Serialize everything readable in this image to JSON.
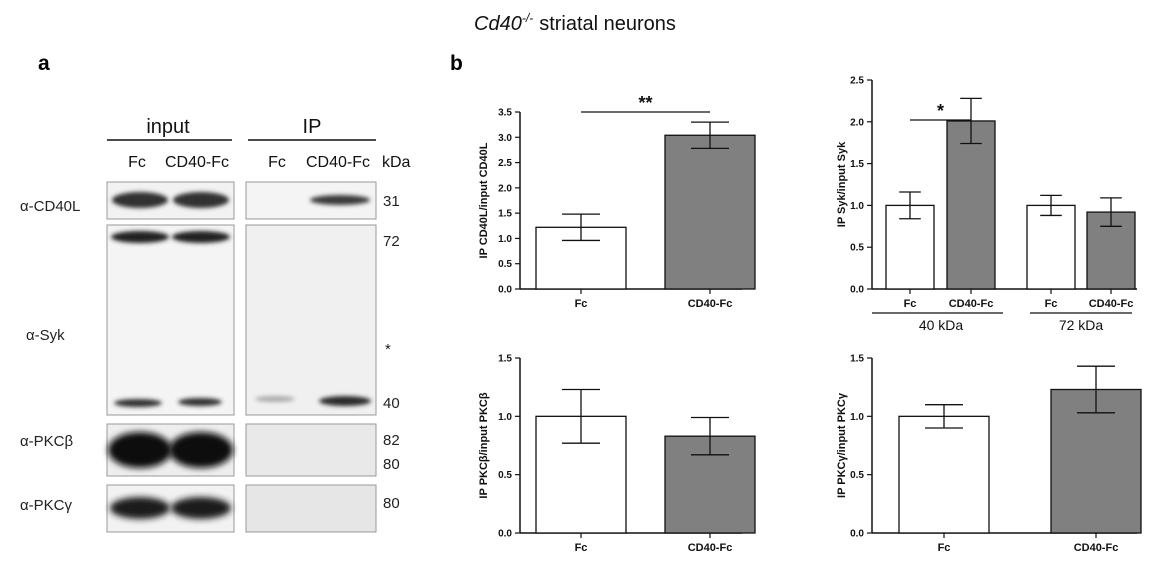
{
  "figure": {
    "title_gene": "Cd40",
    "title_sup": "-/-",
    "title_rest": "striatal neurons",
    "panel_a_letter": "a",
    "panel_b_letter": "b"
  },
  "blot": {
    "group_input": "input",
    "group_ip": "IP",
    "lanes": [
      "Fc",
      "CD40-Fc",
      "Fc",
      "CD40-Fc"
    ],
    "kda_label": "kDa",
    "rows": [
      {
        "label_prefix": "α-",
        "label": "CD40L",
        "markers": [
          "31"
        ]
      },
      {
        "label_prefix": "α-",
        "label": "Syk",
        "markers": [
          "72",
          "*",
          "40"
        ]
      },
      {
        "label_prefix": "α-",
        "label": "PKCβ",
        "markers": [
          "82",
          "80"
        ]
      },
      {
        "label_prefix": "α-",
        "label": "PKCγ",
        "markers": [
          "80"
        ]
      }
    ]
  },
  "chart_data": [
    {
      "type": "bar",
      "ylabel": "IP CD40L/input CD40L",
      "categories": [
        "Fc",
        "CD40-Fc"
      ],
      "values": [
        1.22,
        3.04
      ],
      "errors": [
        0.26,
        0.26
      ],
      "fill": [
        "#ffffff",
        "#808080"
      ],
      "ylim": [
        0,
        3.5
      ],
      "yticks": [
        "0.0",
        "0.5",
        "1.0",
        "1.5",
        "2.0",
        "2.5",
        "3.0",
        "3.5"
      ],
      "significance": [
        {
          "between": [
            0,
            1
          ],
          "label": "**"
        }
      ]
    },
    {
      "type": "bar",
      "ylabel": "IP Syk/input Syk",
      "categories": [
        "Fc",
        "CD40-Fc",
        "Fc",
        "CD40-Fc"
      ],
      "groups": [
        "40 kDa",
        "72 kDa"
      ],
      "values": [
        1.0,
        2.01,
        1.0,
        0.92
      ],
      "errors": [
        0.16,
        0.27,
        0.12,
        0.17
      ],
      "fill": [
        "#ffffff",
        "#808080",
        "#ffffff",
        "#808080"
      ],
      "ylim": [
        0,
        2.5
      ],
      "yticks": [
        "0.0",
        "0.5",
        "1.0",
        "1.5",
        "2.0",
        "2.5"
      ],
      "significance": [
        {
          "between": [
            0,
            1
          ],
          "label": "*"
        }
      ]
    },
    {
      "type": "bar",
      "ylabel": "IP PKCβ/input PKCβ",
      "categories": [
        "Fc",
        "CD40-Fc"
      ],
      "values": [
        1.0,
        0.83
      ],
      "errors": [
        0.23,
        0.16
      ],
      "fill": [
        "#ffffff",
        "#808080"
      ],
      "ylim": [
        0,
        1.5
      ],
      "yticks": [
        "0.0",
        "0.5",
        "1.0",
        "1.5"
      ],
      "significance": []
    },
    {
      "type": "bar",
      "ylabel": "IP PKCγ/input PKCγ",
      "categories": [
        "Fc",
        "CD40-Fc"
      ],
      "values": [
        1.0,
        1.23
      ],
      "errors": [
        0.1,
        0.2
      ],
      "fill": [
        "#ffffff",
        "#808080"
      ],
      "ylim": [
        0,
        1.5
      ],
      "yticks": [
        "0.0",
        "0.5",
        "1.0",
        "1.5"
      ],
      "significance": []
    }
  ]
}
